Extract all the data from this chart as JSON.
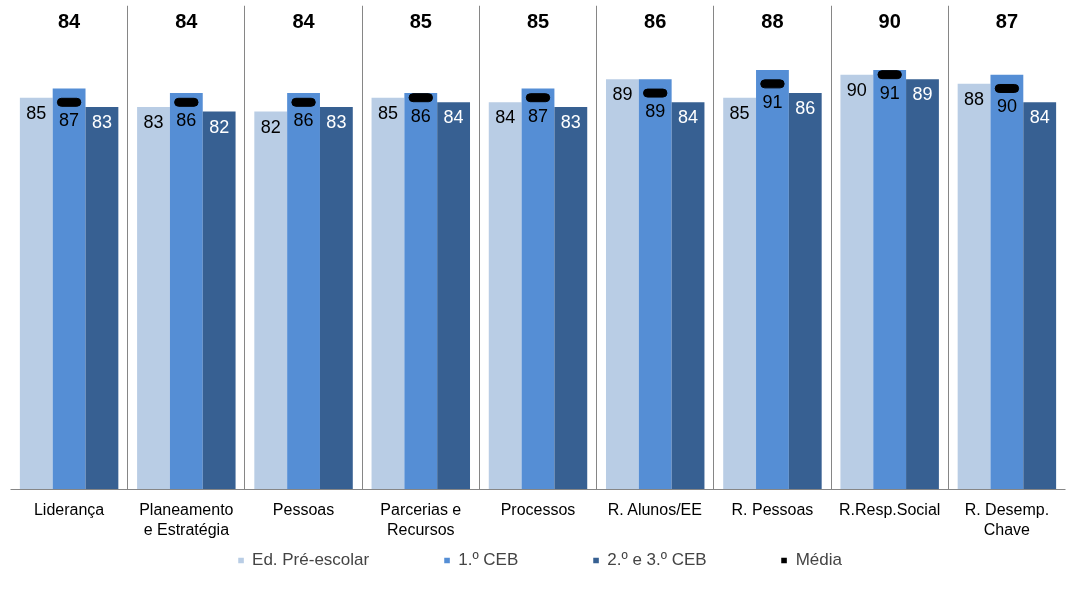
{
  "chart_data": {
    "type": "bar",
    "categories": [
      "Liderança",
      "Planeamento e Estratégia",
      "Pessoas",
      "Parcerias e Recursos",
      "Processos",
      "R. Alunos/EE",
      "R. Pessoas",
      "R.Resp.Social",
      "R. Desemp. Chave"
    ],
    "series": [
      {
        "name": "Ed. Pré-escolar",
        "color": "#b9cde5",
        "values": [
          85,
          83,
          82,
          85,
          84,
          89,
          85,
          90,
          88
        ]
      },
      {
        "name": "1.º CEB",
        "color": "#558ed5",
        "values": [
          87,
          86,
          86,
          86,
          87,
          89,
          91,
          91,
          90
        ]
      },
      {
        "name": "2.º e 3.º CEB",
        "color": "#376092",
        "values": [
          83,
          82,
          83,
          84,
          83,
          84,
          86,
          89,
          84
        ]
      },
      {
        "name": "Média",
        "type": "scatter",
        "color": "#000000",
        "values": [
          84,
          84,
          84,
          85,
          85,
          86,
          88,
          90,
          87
        ],
        "value_labels": [
          null,
          null,
          null,
          null,
          null,
          null,
          null,
          null,
          null
        ]
      }
    ],
    "annotations": [
      "84",
      "84",
      "84",
      "85",
      "85",
      "86",
      "88",
      "90",
      "87"
    ],
    "ylim": [
      0,
      105
    ],
    "tick_labels": "x",
    "data_labels": true,
    "grid": "x",
    "legend": "bottom"
  }
}
